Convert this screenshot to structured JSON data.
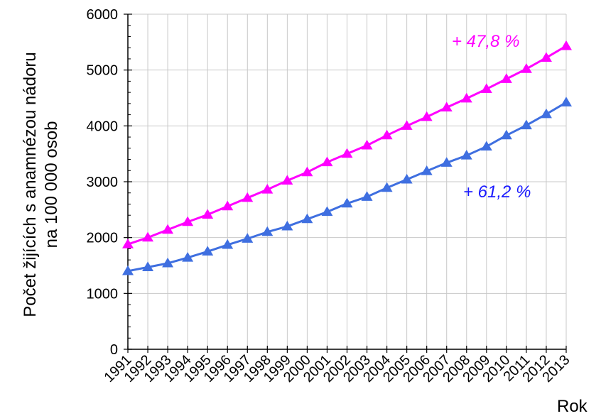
{
  "chart_data": {
    "type": "line",
    "title": "",
    "xlabel": "Rok",
    "ylabel_line1": "Počet žijících s anamnézou nádoru",
    "ylabel_line2": "na 100 000 osob",
    "ylim": [
      0,
      6000
    ],
    "yticks": [
      0,
      1000,
      2000,
      3000,
      4000,
      5000,
      6000
    ],
    "grid": true,
    "categories": [
      "1991",
      "1992",
      "1993",
      "1994",
      "1995",
      "1996",
      "1997",
      "1998",
      "1999",
      "2000",
      "2001",
      "2002",
      "2003",
      "2004",
      "2005",
      "2006",
      "2007",
      "2008",
      "2009",
      "2010",
      "2011",
      "2012",
      "2013"
    ],
    "series": [
      {
        "color": "#ff00ff",
        "values": [
          1880,
          2000,
          2140,
          2280,
          2410,
          2560,
          2710,
          2860,
          3020,
          3170,
          3350,
          3500,
          3650,
          3830,
          4000,
          4160,
          4330,
          4490,
          4660,
          4840,
          5020,
          5220,
          5430
        ]
      },
      {
        "color": "#3f6fe0",
        "values": [
          1400,
          1470,
          1540,
          1640,
          1750,
          1870,
          1980,
          2100,
          2200,
          2330,
          2460,
          2610,
          2730,
          2890,
          3040,
          3190,
          3340,
          3470,
          3630,
          3830,
          4010,
          4210,
          4420
        ]
      }
    ],
    "annotations": [
      {
        "text": "+ 47,8 %",
        "color": "#ff00ff"
      },
      {
        "text": "+ 61,2 %",
        "color": "#1a1aff"
      }
    ]
  }
}
